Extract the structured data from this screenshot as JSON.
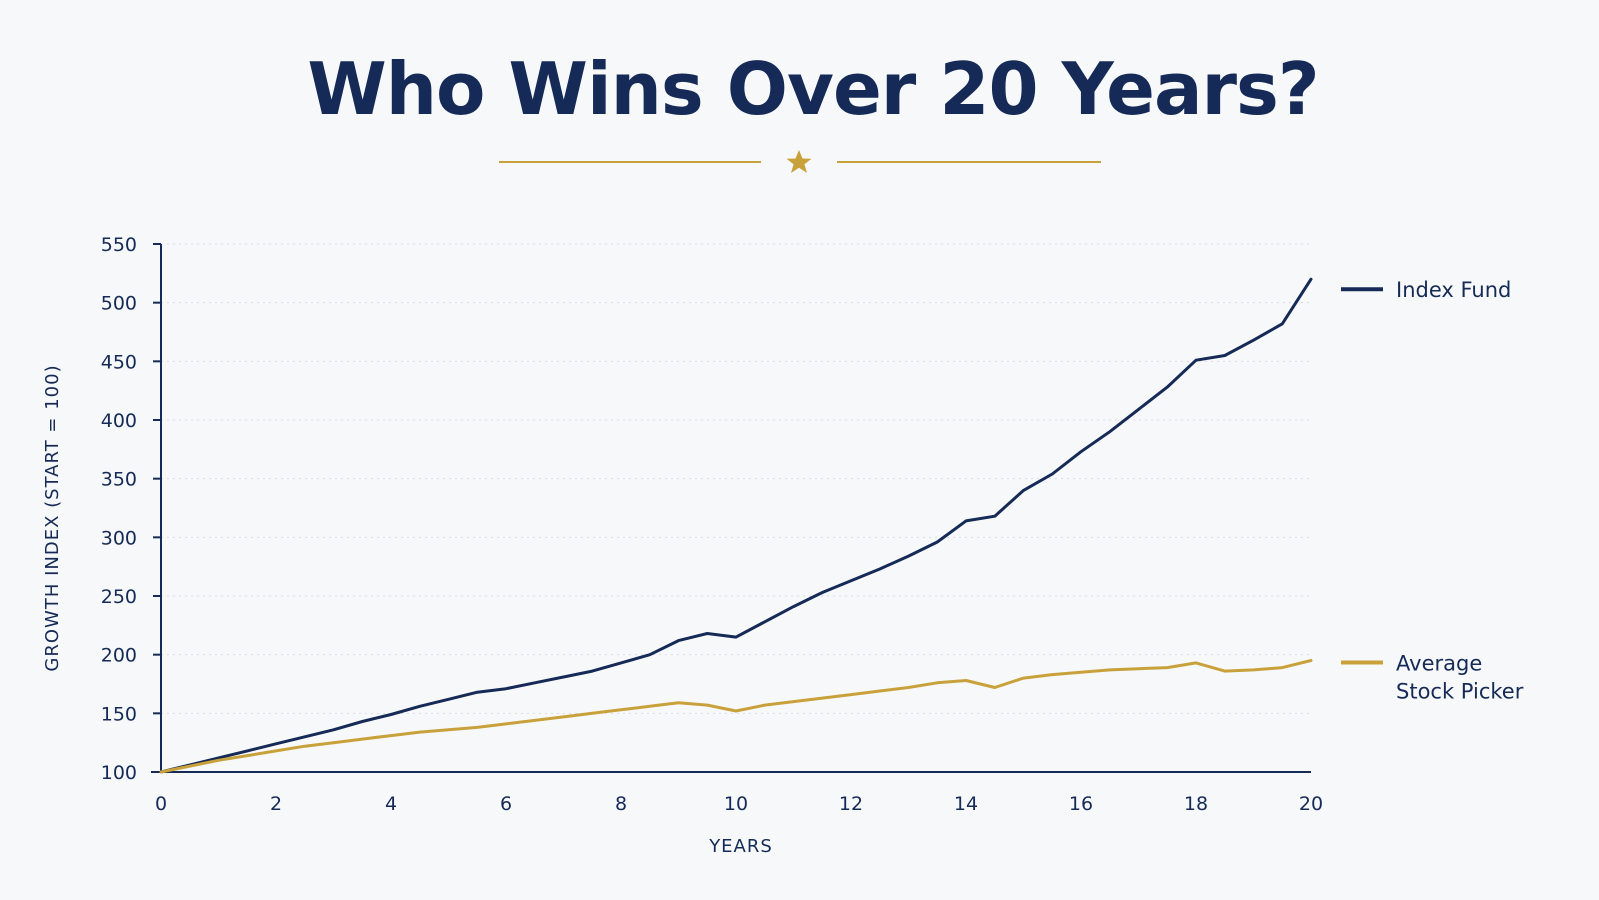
{
  "title": "Who Wins Over 20 Years?",
  "colors": {
    "navy": "#152a56",
    "gold": "#c9a13a",
    "background": "#f7f8fa",
    "grid": "#d9dde4"
  },
  "divider": {
    "icon": "star-icon"
  },
  "chart_data": {
    "type": "line",
    "xlabel": "YEARS",
    "ylabel": "GROWTH INDEX (START = 100)",
    "xlim": [
      0,
      20
    ],
    "ylim": [
      100,
      550
    ],
    "x_ticks": [
      0,
      2,
      4,
      6,
      8,
      10,
      12,
      14,
      16,
      18,
      20
    ],
    "y_ticks": [
      100,
      150,
      200,
      250,
      300,
      350,
      400,
      450,
      500,
      550
    ],
    "grid": "horizontal dotted",
    "legend_position": "right, at line ends",
    "series": [
      {
        "name": "Index Fund",
        "color": "#152a56",
        "x": [
          0,
          0.5,
          1,
          1.5,
          2,
          2.5,
          3,
          3.5,
          4,
          4.5,
          5,
          5.5,
          6,
          6.5,
          7,
          7.5,
          8,
          8.5,
          9,
          9.5,
          10,
          10.5,
          11,
          11.5,
          12,
          12.5,
          13,
          13.5,
          14,
          14.5,
          15,
          15.5,
          16,
          16.5,
          17,
          17.5,
          18,
          18.5,
          19,
          19.5,
          20
        ],
        "values": [
          100,
          106,
          112,
          118,
          124,
          130,
          136,
          143,
          149,
          156,
          162,
          168,
          171,
          176,
          181,
          186,
          193,
          200,
          212,
          218,
          215,
          228,
          241,
          253,
          263,
          273,
          284,
          296,
          314,
          318,
          340,
          354,
          373,
          390,
          409,
          428,
          451,
          455,
          468,
          482,
          520
        ]
      },
      {
        "name": "Average Stock Picker",
        "legend_lines": [
          "Average",
          "Stock Picker"
        ],
        "color": "#c9a13a",
        "x": [
          0,
          0.5,
          1,
          1.5,
          2,
          2.5,
          3,
          3.5,
          4,
          4.5,
          5,
          5.5,
          6,
          6.5,
          7,
          7.5,
          8,
          8.5,
          9,
          9.5,
          10,
          10.5,
          11,
          11.5,
          12,
          12.5,
          13,
          13.5,
          14,
          14.5,
          15,
          15.5,
          16,
          16.5,
          17,
          17.5,
          18,
          18.5,
          19,
          19.5,
          20
        ],
        "values": [
          100,
          105,
          110,
          114,
          118,
          122,
          125,
          128,
          131,
          134,
          136,
          138,
          141,
          144,
          147,
          150,
          153,
          156,
          159,
          157,
          152,
          157,
          160,
          163,
          166,
          169,
          172,
          176,
          178,
          172,
          180,
          183,
          185,
          187,
          188,
          189,
          193,
          186,
          187,
          189,
          195
        ]
      }
    ]
  }
}
